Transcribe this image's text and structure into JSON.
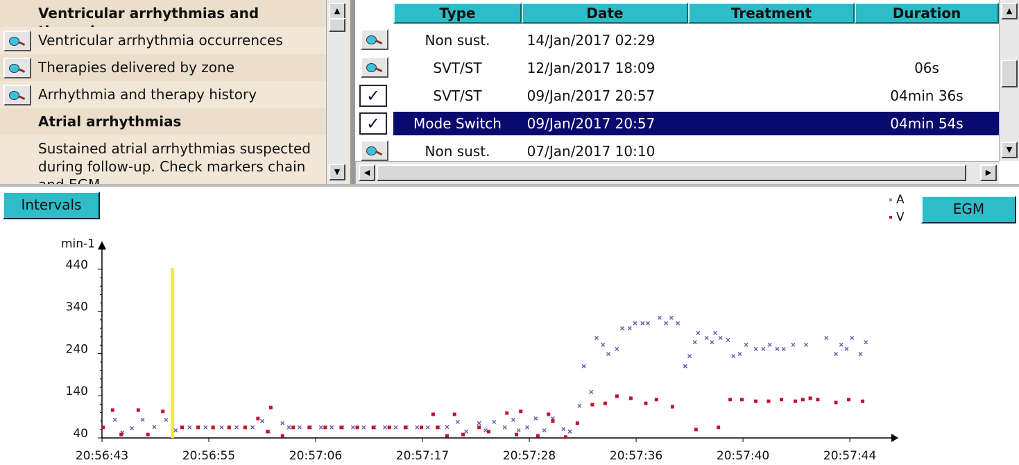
{
  "ui": {
    "left_list": [
      {
        "text": "Ventricular arrhythmias and therapies",
        "bold": true,
        "icon": false
      },
      {
        "text": "Ventricular arrhythmia occurrences",
        "bold": false,
        "icon": true
      },
      {
        "text": "Therapies delivered by zone",
        "bold": false,
        "icon": true
      },
      {
        "text": "Arrhythmia and therapy history",
        "bold": false,
        "icon": true
      },
      {
        "text": "Atrial arrhythmias",
        "bold": true,
        "icon": false
      },
      {
        "text": "Sustained atrial arrhythmias suspected during follow-up. Check markers chain and EGM",
        "bold": false,
        "icon": false
      }
    ],
    "table": {
      "headers": [
        "Type",
        "Date",
        "Treatment",
        "Duration"
      ],
      "rows": [
        {
          "icon": "search",
          "cells": [
            "Non sust.",
            "14/Jan/2017 02:29",
            null,
            null
          ]
        },
        {
          "icon": "search",
          "cells": [
            "SVT/ST",
            "12/Jan/2017 18:09",
            null,
            "06s"
          ]
        },
        {
          "icon": "check",
          "cells": [
            "SVT/ST",
            "09/Jan/2017 20:57",
            null,
            "04min 36s"
          ]
        },
        {
          "icon": "check",
          "cells": [
            "Mode Switch",
            "09/Jan/2017 20:57",
            null,
            "04min 54s"
          ]
        },
        {
          "icon": "search",
          "cells": [
            "Non sust.",
            "07/Jan/2017 10:10",
            null,
            null
          ]
        }
      ],
      "selected": 3
    },
    "buttons": {
      "intervals": "Intervals",
      "egm": "EGM"
    }
  },
  "chart_data": {
    "type": "scatter",
    "y_label": "min-1",
    "xlim": [
      0,
      73.5
    ],
    "ylim": [
      40,
      500
    ],
    "xticks": [
      {
        "value": 0,
        "label": "20:56:43"
      },
      {
        "value": 10,
        "label": "20:56:55"
      },
      {
        "value": 20,
        "label": "20:57:06"
      },
      {
        "value": 30,
        "label": "20:57:17"
      },
      {
        "value": 40,
        "label": "20:57:28"
      },
      {
        "value": 50,
        "label": "20:57:36"
      },
      {
        "value": 60,
        "label": "20:57:40"
      },
      {
        "value": 70,
        "label": "20:57:44"
      }
    ],
    "yticks": [
      40,
      140,
      240,
      340,
      440
    ],
    "cursor": {
      "x": 6.6,
      "color": "#f4ee2a"
    },
    "series": [
      {
        "name": "A",
        "color": "#5c5cae",
        "marker": "x",
        "x": [
          1.2,
          1.9,
          2.8,
          3.8,
          4.9,
          6.0,
          6.9,
          7.5,
          8.2,
          9.0,
          9.7,
          10.4,
          11.2,
          11.9,
          12.6,
          13.4,
          14.1,
          15.0,
          15.6,
          16.9,
          17.5,
          18.5,
          19.5,
          20.5,
          21.5,
          22.5,
          23.5,
          24.5,
          25.5,
          26.5,
          27.5,
          28.5,
          29.5,
          30.5,
          31.5,
          32.3,
          33.3,
          34.1,
          35.3,
          35.9,
          36.7,
          37.7,
          38.5,
          39.0,
          39.8,
          40.6,
          41.4,
          42.2,
          43.2,
          43.8,
          44.7,
          45.1,
          45.8,
          46.3,
          46.9,
          47.4,
          48.2,
          48.7,
          49.4,
          49.9,
          50.6,
          51.1,
          52.2,
          52.8,
          53.3,
          53.9,
          54.6,
          55.0,
          55.5,
          55.8,
          56.6,
          57.1,
          57.4,
          57.9,
          58.6,
          59.1,
          59.7,
          60.3,
          61.2,
          61.9,
          62.5,
          63.2,
          63.8,
          64.7,
          65.9,
          67.8,
          68.7,
          69.2,
          69.7,
          70.2,
          71.0,
          71.5
        ],
        "values": [
          83,
          53,
          63,
          83,
          66,
          83,
          58,
          65,
          65,
          65,
          65,
          65,
          65,
          65,
          65,
          65,
          65,
          80,
          55,
          75,
          65,
          65,
          65,
          65,
          65,
          65,
          65,
          65,
          65,
          65,
          65,
          65,
          65,
          65,
          65,
          66,
          78,
          55,
          75,
          58,
          78,
          65,
          83,
          58,
          65,
          86,
          58,
          86,
          61,
          55,
          116,
          210,
          149,
          277,
          261,
          239,
          251,
          300,
          300,
          312,
          312,
          312,
          325,
          312,
          325,
          312,
          210,
          234,
          267,
          289,
          277,
          267,
          289,
          277,
          272,
          234,
          239,
          261,
          251,
          251,
          261,
          251,
          251,
          261,
          261,
          277,
          239,
          261,
          251,
          277,
          239,
          267
        ]
      },
      {
        "name": "V",
        "color": "#c41030",
        "marker": "square",
        "x": [
          0.1,
          1.0,
          1.8,
          3.4,
          4.3,
          5.7,
          7.5,
          9.0,
          10.4,
          11.9,
          13.4,
          14.6,
          15.5,
          15.8,
          16.9,
          17.9,
          19.4,
          20.9,
          22.4,
          23.9,
          25.4,
          26.9,
          28.4,
          29.9,
          31.0,
          31.4,
          32.3,
          33.0,
          33.8,
          35.3,
          36.2,
          37.9,
          38.8,
          39.2,
          40.8,
          41.8,
          42.2,
          43.4,
          44.5,
          45.9,
          47.1,
          48.2,
          49.5,
          50.9,
          51.9,
          53.4,
          55.6,
          57.7,
          58.8,
          59.9,
          61.2,
          62.4,
          63.6,
          64.9,
          65.6,
          66.3,
          67.0,
          68.7,
          69.9,
          71.2
        ],
        "values": [
          65,
          106,
          48,
          106,
          48,
          103,
          65,
          65,
          65,
          65,
          65,
          86,
          55,
          112,
          45,
          65,
          65,
          65,
          65,
          65,
          65,
          65,
          65,
          65,
          96,
          65,
          45,
          96,
          48,
          65,
          55,
          99,
          48,
          103,
          45,
          96,
          80,
          42,
          75,
          119,
          122,
          139,
          134,
          122,
          131,
          114,
          60,
          65,
          131,
          131,
          127,
          127,
          131,
          127,
          131,
          134,
          131,
          124,
          131,
          127
        ]
      }
    ]
  }
}
